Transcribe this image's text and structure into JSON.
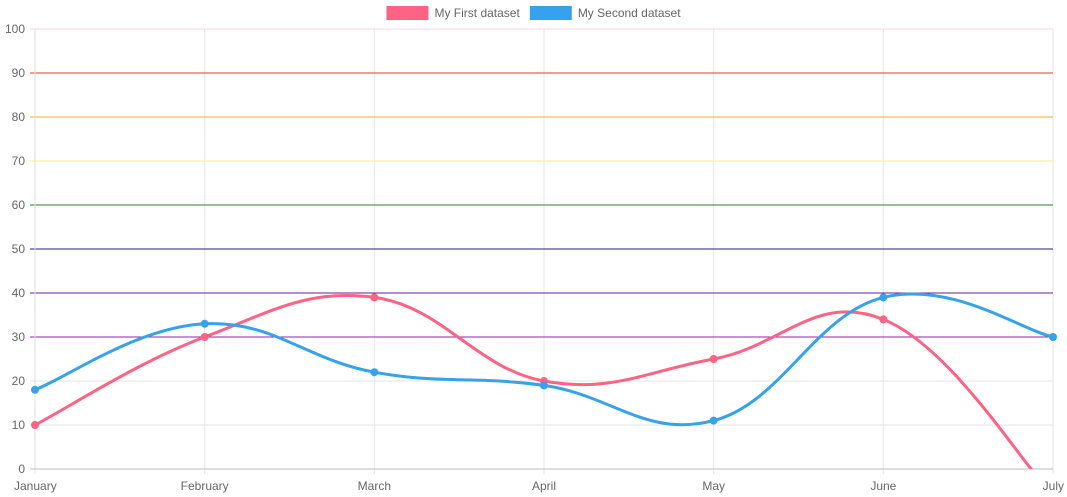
{
  "chart_data": {
    "type": "line",
    "categories": [
      "January",
      "February",
      "March",
      "April",
      "May",
      "June",
      "July"
    ],
    "series": [
      {
        "name": "My First dataset",
        "color": "#ff6384",
        "values": [
          10,
          30,
          39,
          20,
          25,
          34,
          -6
        ]
      },
      {
        "name": "My Second dataset",
        "color": "#36a2eb",
        "values": [
          18,
          33,
          22,
          19,
          11,
          39,
          30
        ]
      }
    ],
    "ylim": [
      0,
      100
    ],
    "y_ticks": [
      "0",
      "10",
      "20",
      "30",
      "40",
      "50",
      "60",
      "70",
      "80",
      "90",
      "100"
    ],
    "grid": true,
    "legend_position": "top",
    "colored_horizontal_lines": [
      {
        "value": 100,
        "color": "#ffd6e0"
      },
      {
        "value": 90,
        "color": "#e53935"
      },
      {
        "value": 80,
        "color": "#ffa726"
      },
      {
        "value": 70,
        "color": "#fff176"
      },
      {
        "value": 60,
        "color": "#2e7d32"
      },
      {
        "value": 50,
        "color": "#1a237e"
      },
      {
        "value": 40,
        "color": "#6a1b9a"
      },
      {
        "value": 30,
        "color": "#8e24aa"
      }
    ],
    "curve": "smooth"
  }
}
